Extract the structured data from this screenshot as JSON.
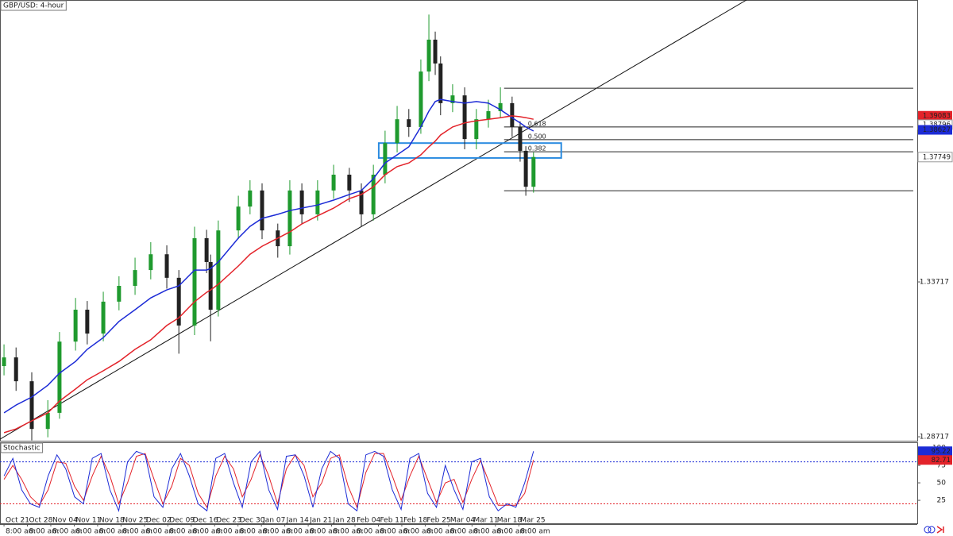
{
  "chart_data": {
    "type": "candlestick",
    "title": "GBP/USD: 4-hour",
    "xlim": [
      -1.2,
      273.2
    ],
    "ylim": [
      1.2859,
      1.4282
    ],
    "xticks": [
      {
        "value": 0,
        "label": "Oct 21",
        "sublabel": "8:00 am"
      },
      {
        "value": 7,
        "label": "Oct 28",
        "sublabel": "8:00 am"
      },
      {
        "value": 14,
        "label": "Nov 04",
        "sublabel": "8:00 am"
      },
      {
        "value": 21,
        "label": "Nov 11",
        "sublabel": "8:00 am"
      },
      {
        "value": 28,
        "label": "Nov 18",
        "sublabel": "8:00 am"
      },
      {
        "value": 35,
        "label": "Nov 25",
        "sublabel": "8:00 am"
      },
      {
        "value": 42,
        "label": "Dec 02",
        "sublabel": "8:00 am"
      },
      {
        "value": 49,
        "label": "Dec 09",
        "sublabel": "8:00 am"
      },
      {
        "value": 56,
        "label": "Dec 16",
        "sublabel": "8:00 am"
      },
      {
        "value": 63,
        "label": "Dec 23",
        "sublabel": "8:00 am"
      },
      {
        "value": 70,
        "label": "Dec 30",
        "sublabel": "8:00 am"
      },
      {
        "value": 77,
        "label": "Jan 07",
        "sublabel": "8:00 am"
      },
      {
        "value": 84,
        "label": "Jan 14",
        "sublabel": "8:00 am"
      },
      {
        "value": 91,
        "label": "Jan 21",
        "sublabel": "8:00 am"
      },
      {
        "value": 98,
        "label": "Jan 28",
        "sublabel": "8:00 am"
      },
      {
        "value": 105,
        "label": "Feb 04",
        "sublabel": "8:00 am"
      },
      {
        "value": 112,
        "label": "Feb 11",
        "sublabel": "8:00 am"
      },
      {
        "value": 119,
        "label": "Feb 18",
        "sublabel": "8:00 am"
      },
      {
        "value": 126,
        "label": "Feb 25",
        "sublabel": "8:00 am"
      },
      {
        "value": 133,
        "label": "Mar 04",
        "sublabel": "8:00 am"
      },
      {
        "value": 140,
        "label": "Mar 11",
        "sublabel": "8:00 am"
      },
      {
        "value": 147,
        "label": "Mar 18",
        "sublabel": "8:00 am"
      },
      {
        "value": 154,
        "label": "Mar 25",
        "sublabel": "8:00 am"
      }
    ],
    "yticks": [
      1.28717,
      1.33717
    ],
    "up_color": "#1f9a2e",
    "down_color": "#222222",
    "candle_x": [
      0,
      3.6,
      8.3,
      13.1,
      16.6,
      21.4,
      24.9,
      29.7,
      34.4,
      39.2,
      43.9,
      48.7,
      52.3,
      57.0,
      60.6,
      61.8,
      64.1,
      70.1,
      73.6,
      77.2,
      81.9,
      85.5,
      89.1,
      93.8,
      98.6,
      103.3,
      106.9,
      110.5,
      114.0,
      117.6,
      121.1,
      124.7,
      127.1,
      129.0,
      130.6,
      134.2,
      137.8,
      141.3,
      144.9,
      148.5,
      152.0,
      154.4,
      156.1,
      158.4
    ],
    "candles": [
      [
        1.31,
        1.317,
        1.307,
        1.3128
      ],
      [
        1.3128,
        1.316,
        1.302,
        1.3051
      ],
      [
        1.3051,
        1.308,
        1.286,
        1.2897
      ],
      [
        1.2897,
        1.299,
        1.287,
        1.2949
      ],
      [
        1.2949,
        1.321,
        1.293,
        1.3179
      ],
      [
        1.3179,
        1.332,
        1.315,
        1.3282
      ],
      [
        1.3282,
        1.331,
        1.317,
        1.3205
      ],
      [
        1.3205,
        1.334,
        1.318,
        1.3308
      ],
      [
        1.3308,
        1.339,
        1.328,
        1.3359
      ],
      [
        1.3359,
        1.345,
        1.333,
        1.341
      ],
      [
        1.341,
        1.35,
        1.338,
        1.3461
      ],
      [
        1.3461,
        1.349,
        1.335,
        1.3385
      ],
      [
        1.3385,
        1.341,
        1.314,
        1.3231
      ],
      [
        1.3231,
        1.355,
        1.32,
        1.3513
      ],
      [
        1.3513,
        1.354,
        1.34,
        1.3436
      ],
      [
        1.3436,
        1.346,
        1.318,
        1.3282
      ],
      [
        1.3282,
        1.357,
        1.326,
        1.3538
      ],
      [
        1.3538,
        1.365,
        1.351,
        1.3615
      ],
      [
        1.3615,
        1.37,
        1.359,
        1.3667
      ],
      [
        1.3667,
        1.369,
        1.351,
        1.3538
      ],
      [
        1.3538,
        1.356,
        1.345,
        1.3487
      ],
      [
        1.3487,
        1.37,
        1.346,
        1.3667
      ],
      [
        1.3667,
        1.369,
        1.356,
        1.359
      ],
      [
        1.359,
        1.37,
        1.357,
        1.3667
      ],
      [
        1.3667,
        1.375,
        1.364,
        1.3718
      ],
      [
        1.3718,
        1.374,
        1.363,
        1.3667
      ],
      [
        1.3667,
        1.369,
        1.355,
        1.359
      ],
      [
        1.359,
        1.375,
        1.357,
        1.3718
      ],
      [
        1.3718,
        1.386,
        1.369,
        1.382
      ],
      [
        1.382,
        1.394,
        1.379,
        1.3897
      ],
      [
        1.3897,
        1.393,
        1.384,
        1.3872
      ],
      [
        1.3872,
        1.409,
        1.385,
        1.4051
      ],
      [
        1.4051,
        1.4235,
        1.402,
        1.4154
      ],
      [
        1.4154,
        1.418,
        1.404,
        1.4077
      ],
      [
        1.4077,
        1.41,
        1.391,
        1.3949
      ],
      [
        1.3949,
        1.401,
        1.392,
        1.3974
      ],
      [
        1.3974,
        1.4,
        1.38,
        1.3833
      ],
      [
        1.3833,
        1.393,
        1.38,
        1.3897
      ],
      [
        1.3897,
        1.396,
        1.387,
        1.3923
      ],
      [
        1.3923,
        1.4,
        1.39,
        1.3949
      ],
      [
        1.3949,
        1.397,
        1.384,
        1.3872
      ],
      [
        1.3872,
        1.389,
        1.376,
        1.3795
      ],
      [
        1.3795,
        1.381,
        1.365,
        1.3679
      ],
      [
        1.3679,
        1.379,
        1.366,
        1.3775
      ]
    ],
    "moving_averages": [
      {
        "color": "#1c2bd6",
        "values": [
          1.2949,
          1.2974,
          1.3,
          1.3038,
          1.3077,
          1.3115,
          1.3154,
          1.3192,
          1.3244,
          1.3282,
          1.332,
          1.3346,
          1.3359,
          1.341,
          1.341,
          1.3415,
          1.3436,
          1.3513,
          1.3551,
          1.3577,
          1.359,
          1.3602,
          1.361,
          1.362,
          1.3636,
          1.3654,
          1.3667,
          1.3705,
          1.3756,
          1.3782,
          1.3808,
          1.3872,
          1.3923,
          1.3954,
          1.3961,
          1.3954,
          1.3949,
          1.3954,
          1.3949,
          1.3928,
          1.3902,
          1.3885,
          1.3872,
          1.3859
        ]
      },
      {
        "color": "#e3232a",
        "values": [
          1.2885,
          1.2897,
          1.2923,
          1.2949,
          1.2987,
          1.3026,
          1.3056,
          1.3085,
          1.3115,
          1.3154,
          1.3185,
          1.3231,
          1.3256,
          1.3308,
          1.3338,
          1.3346,
          1.3364,
          1.3423,
          1.3461,
          1.3487,
          1.3513,
          1.3533,
          1.3559,
          1.3585,
          1.361,
          1.3641,
          1.3654,
          1.3679,
          1.3718,
          1.3744,
          1.3756,
          1.3782,
          1.3808,
          1.3826,
          1.3846,
          1.3872,
          1.3885,
          1.3892,
          1.3897,
          1.3902,
          1.3908,
          1.3905,
          1.3902,
          1.3897
        ]
      }
    ],
    "trendline": {
      "x": [
        -1.2,
        222.1
      ],
      "y": [
        1.2864,
        1.4282
      ]
    },
    "fib": {
      "x": [
        149.6,
        272.0
      ],
      "levels": [
        1.3997,
        {
          "value": 1.3872,
          "label": "0.618"
        },
        {
          "value": 1.3831,
          "label": "0.500"
        },
        {
          "value": 1.3792,
          "label": "0.382"
        },
        1.3666
      ]
    },
    "zone": {
      "x": [
        112.1,
        166.7
      ],
      "y": [
        1.3772,
        1.382
      ],
      "color": "#2a8be0"
    },
    "price_tags": [
      {
        "value": 1.39083,
        "color": "#e3232a"
      },
      {
        "value": 1.38796,
        "color": "#ffffff"
      },
      {
        "value": 1.38627,
        "color": "#1c2bd6"
      },
      {
        "value": 1.37749,
        "color": "#ffffff"
      }
    ],
    "stochastic": {
      "title": "Stochastic",
      "ylim": [
        -9,
        108
      ],
      "yticks": [
        25,
        50,
        75,
        100
      ],
      "levels": [
        80,
        20
      ],
      "x_range": [
        0,
        158.4
      ],
      "k": {
        "color": "#1c2bd6",
        "values": [
          60,
          85,
          40,
          20,
          15,
          60,
          90,
          70,
          30,
          20,
          85,
          92,
          40,
          10,
          80,
          95,
          90,
          30,
          15,
          70,
          92,
          60,
          20,
          10,
          85,
          92,
          50,
          15,
          80,
          95,
          40,
          12,
          88,
          90,
          60,
          15,
          70,
          95,
          85,
          20,
          10,
          90,
          95,
          88,
          40,
          12,
          85,
          92,
          35,
          15,
          75,
          40,
          12,
          80,
          85,
          30,
          10,
          20,
          15,
          50,
          95.22
        ]
      },
      "d": {
        "color": "#e3232a",
        "values": [
          55,
          75,
          55,
          30,
          18,
          40,
          80,
          78,
          45,
          25,
          60,
          88,
          60,
          20,
          50,
          88,
          92,
          55,
          20,
          45,
          85,
          75,
          35,
          15,
          60,
          88,
          70,
          30,
          55,
          90,
          60,
          20,
          70,
          90,
          75,
          30,
          50,
          85,
          90,
          45,
          15,
          65,
          92,
          92,
          60,
          25,
          60,
          88,
          55,
          22,
          50,
          55,
          22,
          55,
          82,
          50,
          18,
          18,
          18,
          35,
          82.71
        ]
      }
    }
  }
}
